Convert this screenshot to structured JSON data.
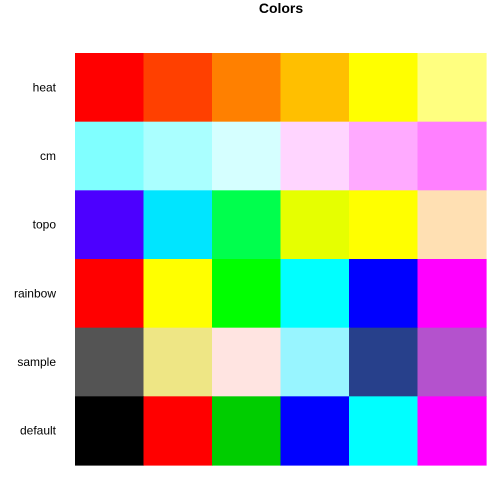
{
  "chart_data": {
    "type": "heatmap",
    "title": "Colors",
    "rows": [
      {
        "label": "heat",
        "colors": [
          "#FF0000",
          "#FF4000",
          "#FF8000",
          "#FFBF00",
          "#FFFF00",
          "#FFFF80"
        ]
      },
      {
        "label": "cm",
        "colors": [
          "#80FFFF",
          "#AAFFFF",
          "#D5FFFF",
          "#FFD5FF",
          "#FFAAFF",
          "#FF80FF"
        ]
      },
      {
        "label": "topo",
        "colors": [
          "#4C00FF",
          "#00E5FF",
          "#00FF4D",
          "#E6FF00",
          "#FFFF00",
          "#FFE0B3"
        ]
      },
      {
        "label": "rainbow",
        "colors": [
          "#FF0000",
          "#FFFF00",
          "#00FF00",
          "#00FFFF",
          "#0000FF",
          "#FF00FF"
        ]
      },
      {
        "label": "sample",
        "colors": [
          "#545454",
          "#EEE685",
          "#FFE4E1",
          "#98F5FF",
          "#27408B",
          "#B452CD"
        ]
      },
      {
        "label": "default",
        "colors": [
          "#000000",
          "#FF0000",
          "#00CD00",
          "#0000FF",
          "#00FFFF",
          "#FF00FF"
        ]
      }
    ],
    "columns": 6,
    "grid": false,
    "legend": "none"
  }
}
